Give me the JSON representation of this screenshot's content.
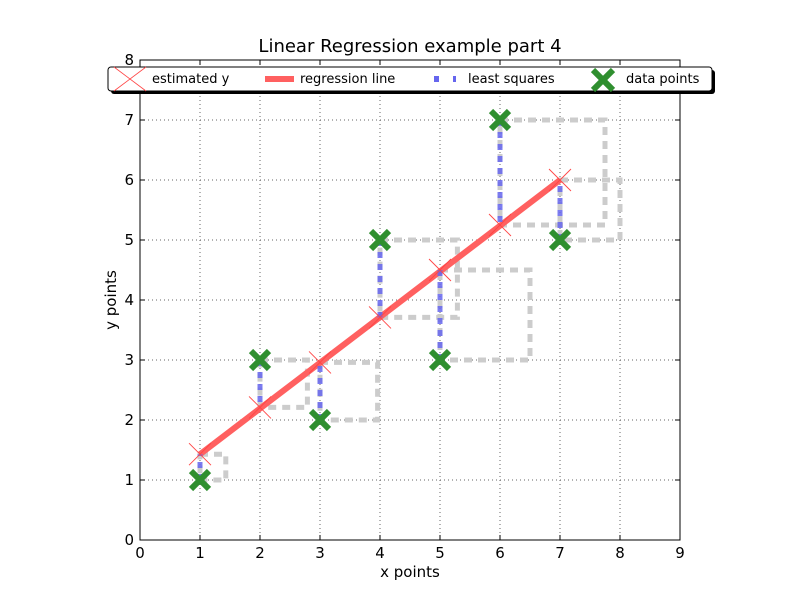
{
  "chart_data": {
    "type": "scatter",
    "title": "Linear Regression  example part 4",
    "xlabel": "x points",
    "ylabel": "y points",
    "xlim": [
      0,
      9
    ],
    "ylim": [
      0,
      8
    ],
    "xticks": [
      "0",
      "1",
      "2",
      "3",
      "4",
      "5",
      "6",
      "7",
      "8",
      "9"
    ],
    "yticks": [
      "0",
      "1",
      "2",
      "3",
      "4",
      "5",
      "6",
      "7",
      "8"
    ],
    "grid": true,
    "legend_position": "top",
    "legend": [
      {
        "label": "estimated y"
      },
      {
        "label": "regression line"
      },
      {
        "label": "least squares"
      },
      {
        "label": "data points"
      }
    ],
    "data_points": {
      "x": [
        1,
        2,
        3,
        4,
        5,
        6,
        7
      ],
      "y": [
        1,
        3,
        2,
        5,
        3,
        7,
        5
      ]
    },
    "estimated_y": {
      "x": [
        1,
        2,
        3,
        4,
        5,
        6,
        7
      ],
      "y": [
        1.43,
        2.21,
        2.96,
        3.71,
        4.5,
        5.25,
        6.0
      ]
    },
    "regression_line": {
      "x": [
        1,
        7
      ],
      "y": [
        1.43,
        6.0
      ]
    },
    "colors": {
      "data_points": "#2f8f2f",
      "estimated_y": "#ff4444",
      "regression_line": "#ff6060",
      "least_squares": "#6666ee",
      "squares": "#cccccc",
      "grid": "#666666"
    }
  }
}
